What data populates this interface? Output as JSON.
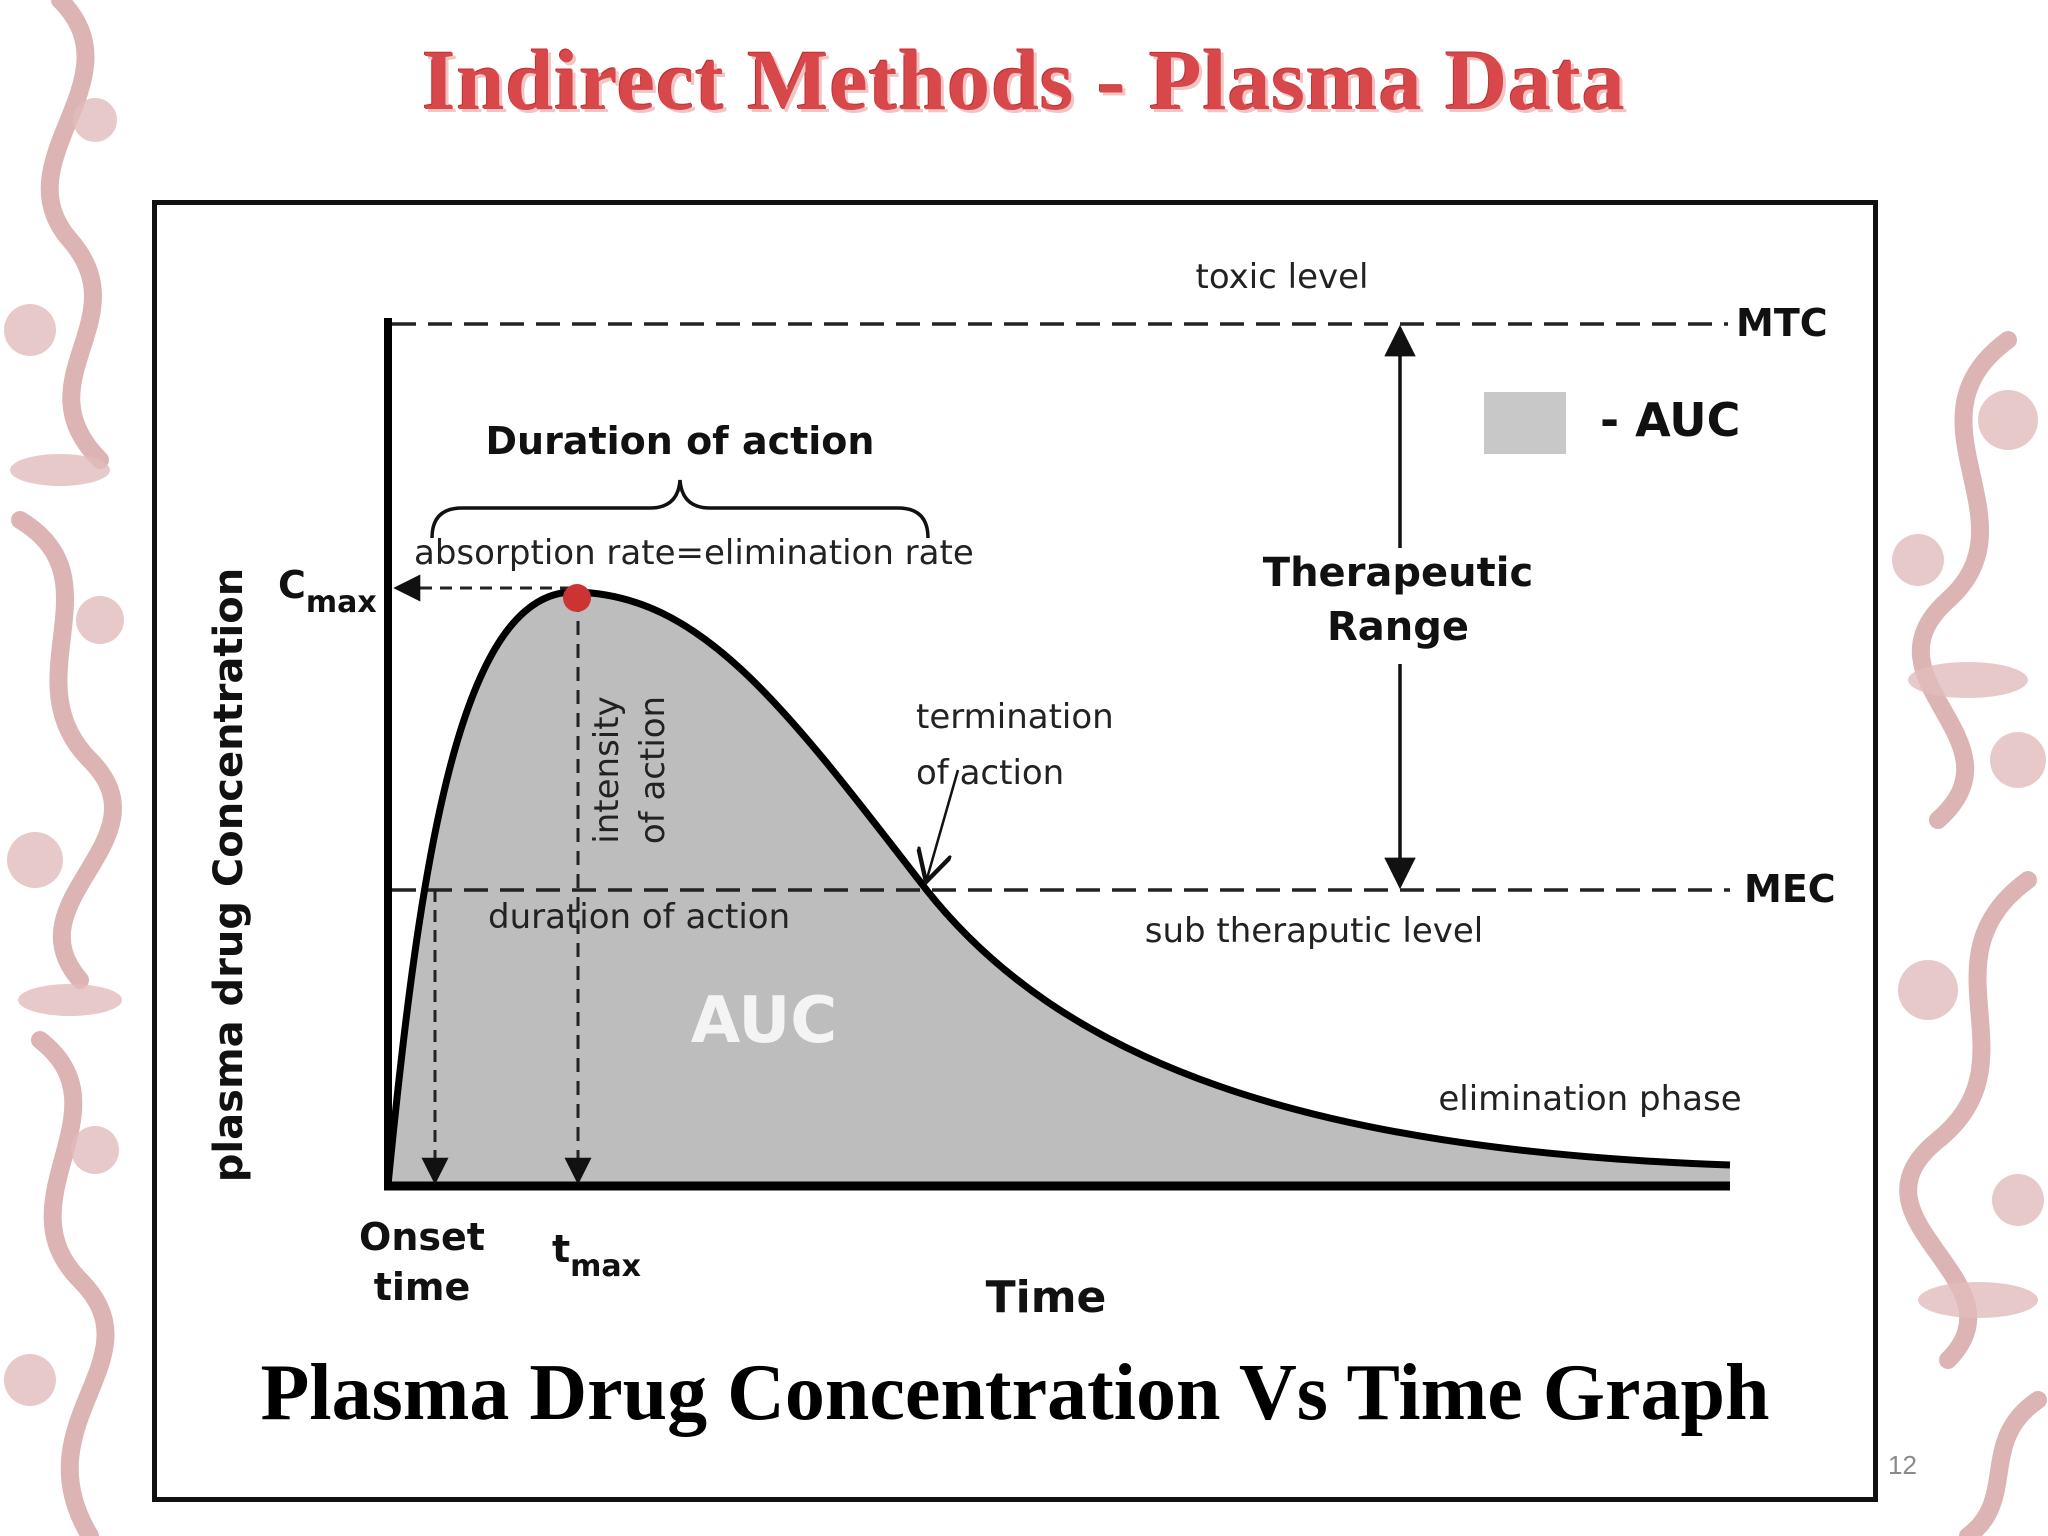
{
  "slide": {
    "title": "Indirect Methods - Plasma Data",
    "caption": "Plasma Drug Concentration Vs Time Graph",
    "page_number": "12"
  },
  "diagram": {
    "y_axis_label": "plasma drug Concentration",
    "x_axis_label": "Time",
    "cmax_main": "C",
    "cmax_sub": "max",
    "tmax_main": "t",
    "tmax_sub": "max",
    "onset_line1": "Onset",
    "onset_line2": "time",
    "toxic_level": "toxic level",
    "mtc": "MTC",
    "mec": "MEC",
    "sub_therapeutic": "sub theraputic level",
    "legend_label": "- AUC",
    "duration_top": "Duration of action",
    "absorption_eq": "absorption rate=elimination rate",
    "therapeutic_line1": "Therapeutic",
    "therapeutic_line2": "Range",
    "termination_line1": "termination",
    "termination_line2": "of action",
    "intensity_line1": "intensity",
    "intensity_line2": "of action",
    "duration_lower": "duration of action",
    "auc": "AUC",
    "elimination_phase": "elimination phase"
  },
  "colors": {
    "title_red": "#d8484a",
    "auc_fill": "#bdbdbd",
    "peak_dot": "#cc3333",
    "ornament": "#d7a7a7"
  }
}
